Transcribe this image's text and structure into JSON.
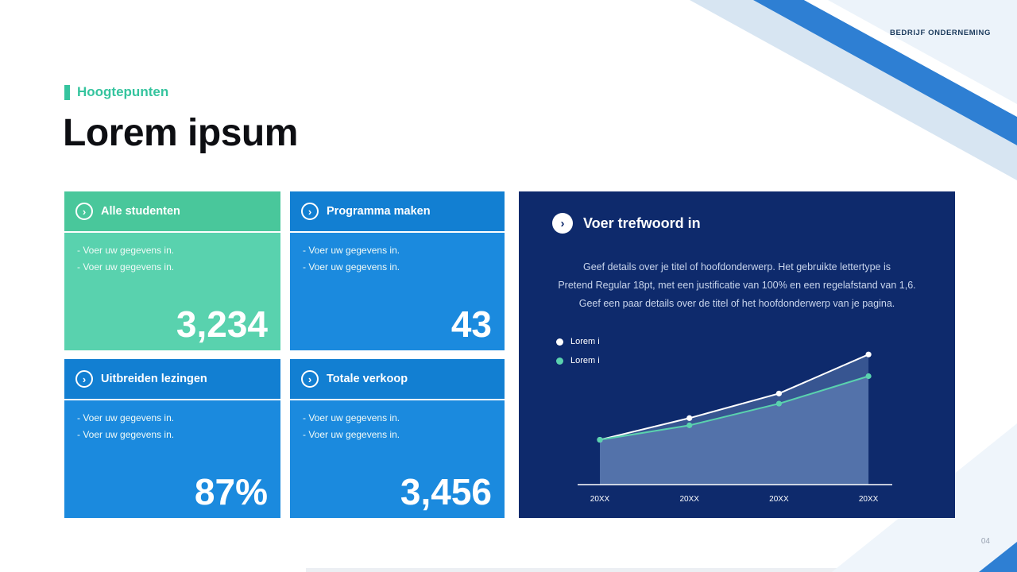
{
  "header": {
    "company_label": "BEDRIJF ONDERNEMING"
  },
  "section": {
    "eyebrow": "Hoogtepunten",
    "title": "Lorem ipsum"
  },
  "icons": {
    "chevron": "›"
  },
  "cards": [
    {
      "title": "Alle studenten",
      "bullets": [
        "- Voer uw gegevens in.",
        "- Voer uw gegevens in."
      ],
      "value": "3,234"
    },
    {
      "title": "Programma maken",
      "bullets": [
        "- Voer uw gegevens in.",
        "- Voer uw gegevens in."
      ],
      "value": "43"
    },
    {
      "title": "Uitbreiden lezingen",
      "bullets": [
        "- Voer uw gegevens in.",
        "- Voer uw gegevens in."
      ],
      "value": "87%"
    },
    {
      "title": "Totale verkoop",
      "bullets": [
        "- Voer uw gegevens in.",
        "- Voer uw gegevens in."
      ],
      "value": "3,456"
    }
  ],
  "panel": {
    "title": "Voer trefwoord in",
    "body_lines": [
      "Geef details over je titel of hoofdonderwerp. Het gebruikte lettertype is",
      "Pretend Regular 18pt, met een justificatie van 100% en een regelafstand van 1,6.",
      "Geef een paar details over de titel of het hoofdonderwerp van je pagina."
    ],
    "legend": [
      {
        "label": "Lorem i",
        "color": "#ffffff"
      },
      {
        "label": "Lorem i",
        "color": "#5ad2ae"
      }
    ]
  },
  "chart_data": {
    "type": "line",
    "categories": [
      "20XX",
      "20XX",
      "20XX",
      "20XX"
    ],
    "series": [
      {
        "name": "Lorem i",
        "color": "#ffffff",
        "values": [
          31,
          46,
          63,
          90
        ]
      },
      {
        "name": "Lorem i",
        "color": "#5ad2ae",
        "values": [
          31,
          41,
          56,
          75
        ]
      }
    ],
    "ylim": [
      0,
      100
    ],
    "area": true,
    "area_fill": "#8fb0e0",
    "x_axis_line": true,
    "legend_position": "top-left",
    "title": "",
    "xlabel": "",
    "ylabel": ""
  },
  "footer": {
    "page_number": "04"
  },
  "colors": {
    "accent_teal": "#35c49e",
    "teal_header": "#49c79b",
    "teal_body": "#59d2ae",
    "blue_header": "#127fd2",
    "blue_body": "#1b8ade",
    "navy_panel": "#0e2a6c",
    "deco_blue": "#2e7fd3",
    "deco_light_blue": "#d7e5f2",
    "deco_pale": "#ecf3fa"
  }
}
